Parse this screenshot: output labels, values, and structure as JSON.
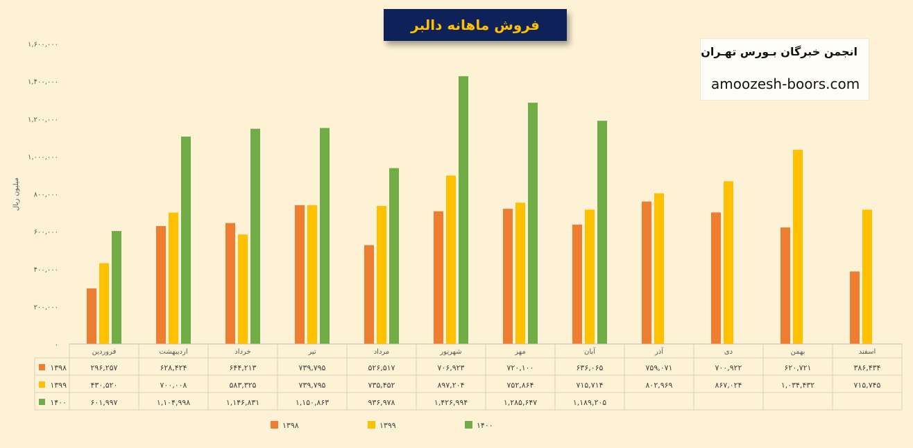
{
  "chart_data": {
    "type": "bar",
    "title": "فروش ماهانه دالبر",
    "ylabel": "میلیون ریال",
    "ylim": [
      0,
      1600000
    ],
    "yticks": [
      "۰",
      "۲۰۰,۰۰۰",
      "۴۰۰,۰۰۰",
      "۶۰۰,۰۰۰",
      "۸۰۰,۰۰۰",
      "۱,۰۰۰,۰۰۰",
      "۱,۲۰۰,۰۰۰",
      "۱,۴۰۰,۰۰۰",
      "۱,۶۰۰,۰۰۰"
    ],
    "categories": [
      "فروردین",
      "اردیبهشت",
      "خرداد",
      "تیر",
      "مرداد",
      "شهریور",
      "مهر",
      "آبان",
      "آذر",
      "دی",
      "بهمن",
      "اسفند"
    ],
    "series": [
      {
        "name": "۱۳۹۸",
        "color": "#ed7d31",
        "values": [
          296257,
          628424,
          644213,
          739795,
          526517,
          706923,
          720100,
          636065,
          759071,
          700922,
          620721,
          386434
        ],
        "labels": [
          "۲۹۶,۲۵۷",
          "۶۲۸,۴۲۴",
          "۶۴۴,۲۱۳",
          "۷۳۹,۷۹۵",
          "۵۲۶,۵۱۷",
          "۷۰۶,۹۲۳",
          "۷۲۰,۱۰۰",
          "۶۳۶,۰۶۵",
          "۷۵۹,۰۷۱",
          "۷۰۰,۹۲۲",
          "۶۲۰,۷۲۱",
          "۳۸۶,۴۳۴"
        ]
      },
      {
        "name": "۱۳۹۹",
        "color": "#ffc000",
        "values": [
          430520,
          700008,
          583325,
          739795,
          735452,
          897204,
          752864,
          715714,
          802969,
          867024,
          1034432,
          715745
        ],
        "labels": [
          "۴۳۰,۵۲۰",
          "۷۰۰,۰۰۸",
          "۵۸۳,۳۲۵",
          "۷۳۹,۷۹۵",
          "۷۳۵,۴۵۲",
          "۸۹۷,۲۰۴",
          "۷۵۲,۸۶۴",
          "۷۱۵,۷۱۴",
          "۸۰۲,۹۶۹",
          "۸۶۷,۰۲۴",
          "۱,۰۳۴,۴۳۲",
          "۷۱۵,۷۴۵"
        ]
      },
      {
        "name": "۱۴۰۰",
        "color": "#70ad47",
        "values": [
          601997,
          1104998,
          1146831,
          1150863,
          936978,
          1426994,
          1285647,
          1189205,
          null,
          null,
          null,
          null
        ],
        "labels": [
          "۶۰۱,۹۹۷",
          "۱,۱۰۴,۹۹۸",
          "۱,۱۴۶,۸۳۱",
          "۱,۱۵۰,۸۶۳",
          "۹۳۶,۹۷۸",
          "۱,۴۲۶,۹۹۴",
          "۱,۲۸۵,۶۴۷",
          "۱,۱۸۹,۲۰۵",
          "",
          "",
          "",
          ""
        ]
      }
    ],
    "legend_position": "bottom",
    "grid": false,
    "data_table": true
  },
  "brand": {
    "name": "انجمن خبرگان بـورس تهـران",
    "url": "amoozesh-boors.com"
  }
}
